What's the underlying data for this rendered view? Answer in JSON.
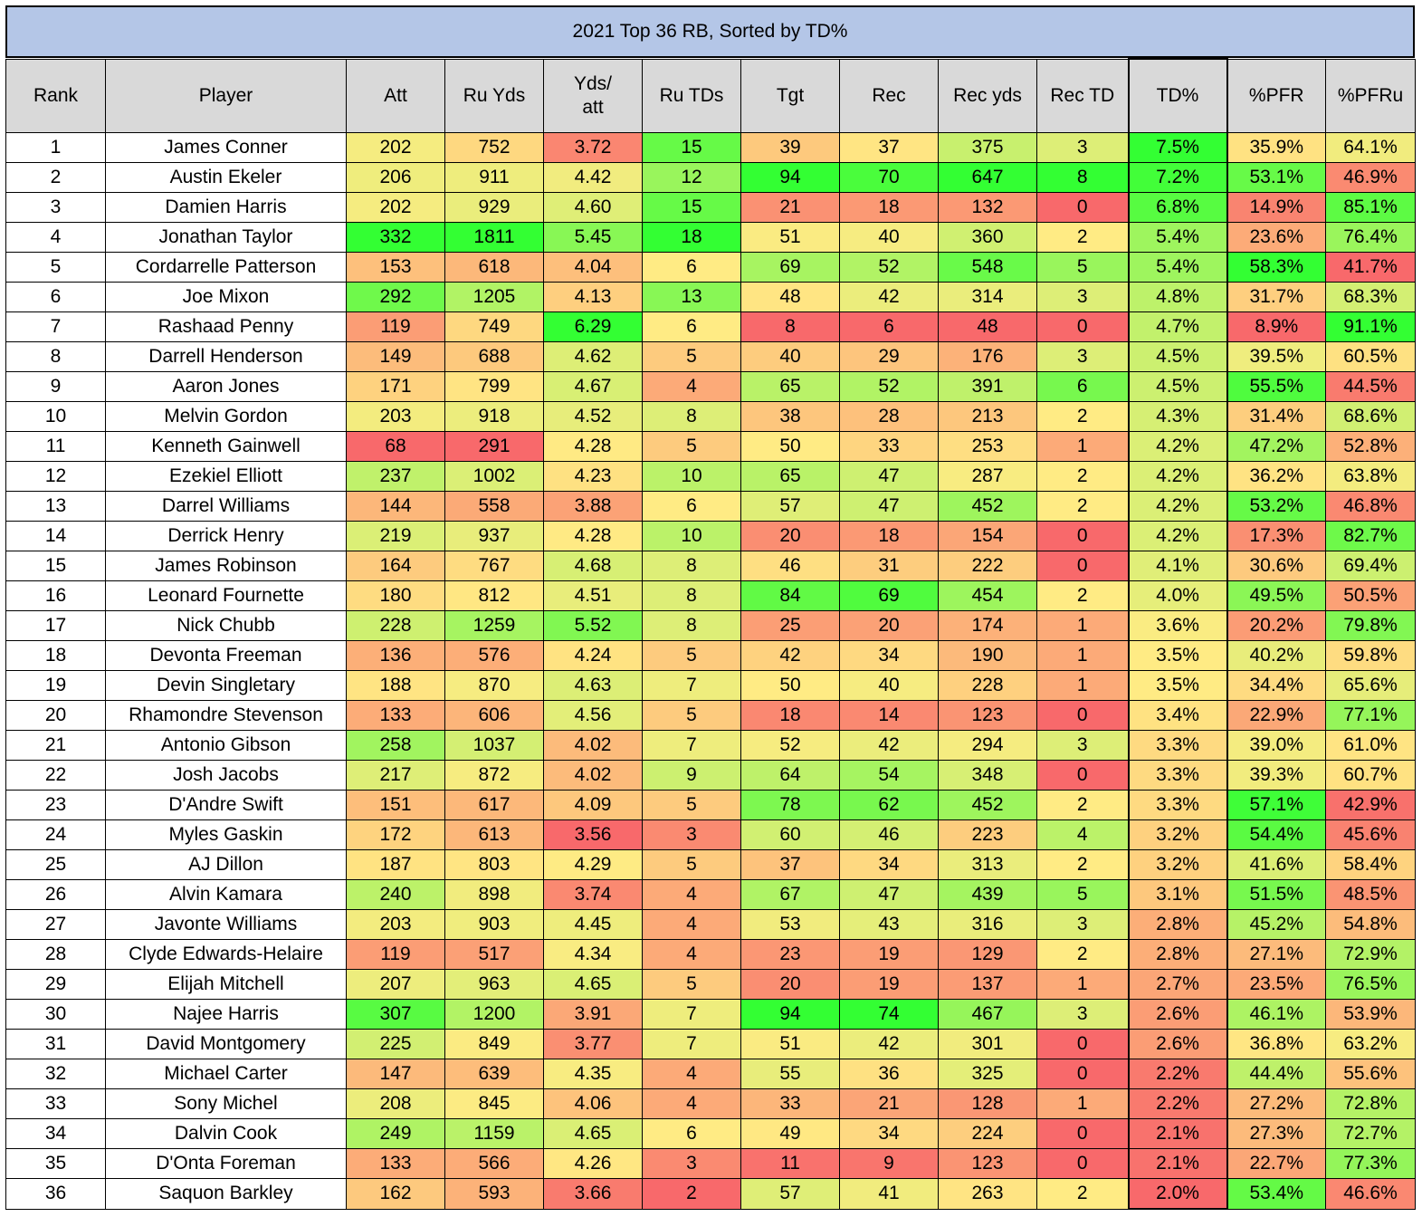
{
  "title": "2021 Top 36 RB, Sorted by TD%",
  "columns": [
    "Rank",
    "Player",
    "Att",
    "Ru Yds",
    "Yds/\natt",
    "Ru TDs",
    "Tgt",
    "Rec",
    "Rec yds",
    "Rec TD",
    "TD%",
    "%PFR",
    "%PFRu"
  ],
  "scale_colors": {
    "low": "#f8696b",
    "mid": "#ffeb84",
    "high": "#33ff33"
  },
  "rows": [
    [
      "1",
      "James Conner",
      "202",
      "752",
      "3.72",
      "15",
      "39",
      "37",
      "375",
      "3",
      "7.5%",
      "35.9%",
      "64.1%"
    ],
    [
      "2",
      "Austin Ekeler",
      "206",
      "911",
      "4.42",
      "12",
      "94",
      "70",
      "647",
      "8",
      "7.2%",
      "53.1%",
      "46.9%"
    ],
    [
      "3",
      "Damien Harris",
      "202",
      "929",
      "4.60",
      "15",
      "21",
      "18",
      "132",
      "0",
      "6.8%",
      "14.9%",
      "85.1%"
    ],
    [
      "4",
      "Jonathan Taylor",
      "332",
      "1811",
      "5.45",
      "18",
      "51",
      "40",
      "360",
      "2",
      "5.4%",
      "23.6%",
      "76.4%"
    ],
    [
      "5",
      "Cordarrelle Patterson",
      "153",
      "618",
      "4.04",
      "6",
      "69",
      "52",
      "548",
      "5",
      "5.4%",
      "58.3%",
      "41.7%"
    ],
    [
      "6",
      "Joe Mixon",
      "292",
      "1205",
      "4.13",
      "13",
      "48",
      "42",
      "314",
      "3",
      "4.8%",
      "31.7%",
      "68.3%"
    ],
    [
      "7",
      "Rashaad Penny",
      "119",
      "749",
      "6.29",
      "6",
      "8",
      "6",
      "48",
      "0",
      "4.7%",
      "8.9%",
      "91.1%"
    ],
    [
      "8",
      "Darrell Henderson",
      "149",
      "688",
      "4.62",
      "5",
      "40",
      "29",
      "176",
      "3",
      "4.5%",
      "39.5%",
      "60.5%"
    ],
    [
      "9",
      "Aaron Jones",
      "171",
      "799",
      "4.67",
      "4",
      "65",
      "52",
      "391",
      "6",
      "4.5%",
      "55.5%",
      "44.5%"
    ],
    [
      "10",
      "Melvin Gordon",
      "203",
      "918",
      "4.52",
      "8",
      "38",
      "28",
      "213",
      "2",
      "4.3%",
      "31.4%",
      "68.6%"
    ],
    [
      "11",
      "Kenneth Gainwell",
      "68",
      "291",
      "4.28",
      "5",
      "50",
      "33",
      "253",
      "1",
      "4.2%",
      "47.2%",
      "52.8%"
    ],
    [
      "12",
      "Ezekiel Elliott",
      "237",
      "1002",
      "4.23",
      "10",
      "65",
      "47",
      "287",
      "2",
      "4.2%",
      "36.2%",
      "63.8%"
    ],
    [
      "13",
      "Darrel Williams",
      "144",
      "558",
      "3.88",
      "6",
      "57",
      "47",
      "452",
      "2",
      "4.2%",
      "53.2%",
      "46.8%"
    ],
    [
      "14",
      "Derrick Henry",
      "219",
      "937",
      "4.28",
      "10",
      "20",
      "18",
      "154",
      "0",
      "4.2%",
      "17.3%",
      "82.7%"
    ],
    [
      "15",
      "James Robinson",
      "164",
      "767",
      "4.68",
      "8",
      "46",
      "31",
      "222",
      "0",
      "4.1%",
      "30.6%",
      "69.4%"
    ],
    [
      "16",
      "Leonard Fournette",
      "180",
      "812",
      "4.51",
      "8",
      "84",
      "69",
      "454",
      "2",
      "4.0%",
      "49.5%",
      "50.5%"
    ],
    [
      "17",
      "Nick Chubb",
      "228",
      "1259",
      "5.52",
      "8",
      "25",
      "20",
      "174",
      "1",
      "3.6%",
      "20.2%",
      "79.8%"
    ],
    [
      "18",
      "Devonta Freeman",
      "136",
      "576",
      "4.24",
      "5",
      "42",
      "34",
      "190",
      "1",
      "3.5%",
      "40.2%",
      "59.8%"
    ],
    [
      "19",
      "Devin Singletary",
      "188",
      "870",
      "4.63",
      "7",
      "50",
      "40",
      "228",
      "1",
      "3.5%",
      "34.4%",
      "65.6%"
    ],
    [
      "20",
      "Rhamondre Stevenson",
      "133",
      "606",
      "4.56",
      "5",
      "18",
      "14",
      "123",
      "0",
      "3.4%",
      "22.9%",
      "77.1%"
    ],
    [
      "21",
      "Antonio Gibson",
      "258",
      "1037",
      "4.02",
      "7",
      "52",
      "42",
      "294",
      "3",
      "3.3%",
      "39.0%",
      "61.0%"
    ],
    [
      "22",
      "Josh Jacobs",
      "217",
      "872",
      "4.02",
      "9",
      "64",
      "54",
      "348",
      "0",
      "3.3%",
      "39.3%",
      "60.7%"
    ],
    [
      "23",
      "D'Andre Swift",
      "151",
      "617",
      "4.09",
      "5",
      "78",
      "62",
      "452",
      "2",
      "3.3%",
      "57.1%",
      "42.9%"
    ],
    [
      "24",
      "Myles Gaskin",
      "172",
      "613",
      "3.56",
      "3",
      "60",
      "46",
      "223",
      "4",
      "3.2%",
      "54.4%",
      "45.6%"
    ],
    [
      "25",
      "AJ Dillon",
      "187",
      "803",
      "4.29",
      "5",
      "37",
      "34",
      "313",
      "2",
      "3.2%",
      "41.6%",
      "58.4%"
    ],
    [
      "26",
      "Alvin Kamara",
      "240",
      "898",
      "3.74",
      "4",
      "67",
      "47",
      "439",
      "5",
      "3.1%",
      "51.5%",
      "48.5%"
    ],
    [
      "27",
      "Javonte Williams",
      "203",
      "903",
      "4.45",
      "4",
      "53",
      "43",
      "316",
      "3",
      "2.8%",
      "45.2%",
      "54.8%"
    ],
    [
      "28",
      "Clyde Edwards-Helaire",
      "119",
      "517",
      "4.34",
      "4",
      "23",
      "19",
      "129",
      "2",
      "2.8%",
      "27.1%",
      "72.9%"
    ],
    [
      "29",
      "Elijah Mitchell",
      "207",
      "963",
      "4.65",
      "5",
      "20",
      "19",
      "137",
      "1",
      "2.7%",
      "23.5%",
      "76.5%"
    ],
    [
      "30",
      "Najee Harris",
      "307",
      "1200",
      "3.91",
      "7",
      "94",
      "74",
      "467",
      "3",
      "2.6%",
      "46.1%",
      "53.9%"
    ],
    [
      "31",
      "David Montgomery",
      "225",
      "849",
      "3.77",
      "7",
      "51",
      "42",
      "301",
      "0",
      "2.6%",
      "36.8%",
      "63.2%"
    ],
    [
      "32",
      "Michael Carter",
      "147",
      "639",
      "4.35",
      "4",
      "55",
      "36",
      "325",
      "0",
      "2.2%",
      "44.4%",
      "55.6%"
    ],
    [
      "33",
      "Sony Michel",
      "208",
      "845",
      "4.06",
      "4",
      "33",
      "21",
      "128",
      "1",
      "2.2%",
      "27.2%",
      "72.8%"
    ],
    [
      "34",
      "Dalvin Cook",
      "249",
      "1159",
      "4.65",
      "6",
      "49",
      "34",
      "224",
      "0",
      "2.1%",
      "27.3%",
      "72.7%"
    ],
    [
      "35",
      "D'Onta Foreman",
      "133",
      "566",
      "4.26",
      "3",
      "11",
      "9",
      "123",
      "0",
      "2.1%",
      "22.7%",
      "77.3%"
    ],
    [
      "36",
      "Saquon Barkley",
      "162",
      "593",
      "3.66",
      "2",
      "57",
      "41",
      "263",
      "2",
      "2.0%",
      "53.4%",
      "46.6%"
    ]
  ]
}
